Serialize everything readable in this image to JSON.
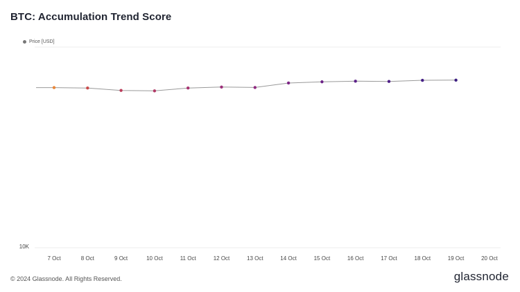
{
  "title": "BTC: Accumulation Trend Score",
  "legend": {
    "price_label": "Price [USD]",
    "price_color": "#777777"
  },
  "footer": {
    "copyright": "© 2024 Glassnode. All Rights Reserved.",
    "brand": "glassnode"
  },
  "chart_data": {
    "type": "line",
    "x": [
      "7 Oct",
      "8 Oct",
      "9 Oct",
      "10 Oct",
      "11 Oct",
      "12 Oct",
      "13 Oct",
      "14 Oct",
      "15 Oct",
      "16 Oct",
      "17 Oct",
      "18 Oct",
      "19 Oct",
      "20 Oct"
    ],
    "y_scale": "log",
    "ylim": [
      10000,
      100000
    ],
    "y_tick_labels": [
      {
        "value": 10000,
        "label": "10K"
      }
    ],
    "series": [
      {
        "name": "Price [USD]",
        "color": "#999999",
        "values": [
          62800,
          62500,
          60800,
          60500,
          62500,
          63200,
          62900,
          66200,
          67100,
          67600,
          67400,
          68300,
          68400,
          null
        ]
      }
    ],
    "point_colors": [
      "#e8873a",
      "#c94a4a",
      "#bb3e5b",
      "#b13a66",
      "#a73370",
      "#9b2e79",
      "#8f2a80",
      "#7d2585",
      "#6b2287",
      "#5c2089",
      "#4f1f88",
      "#441e86",
      "#3b1d80",
      null
    ],
    "grid": true,
    "legend_position": "top-left"
  }
}
